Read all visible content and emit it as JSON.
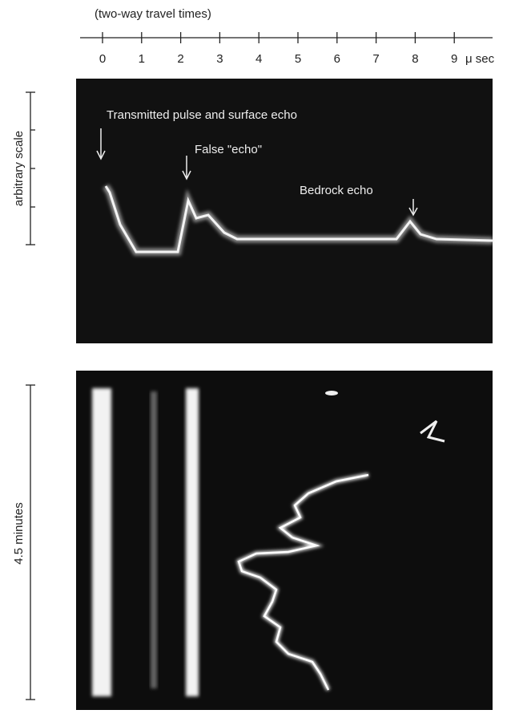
{
  "axis": {
    "title": "(two-way travel times)",
    "ticks": [
      0,
      1,
      2,
      3,
      4,
      5,
      6,
      7,
      8,
      9
    ],
    "unit": "μ sec"
  },
  "top_panel": {
    "side_label": "arbitrary scale",
    "annotations": [
      "Transmitted pulse and surface echo",
      "False \"echo\"",
      "Bedrock echo"
    ]
  },
  "bottom_panel": {
    "side_label": "4.5 minutes"
  }
}
